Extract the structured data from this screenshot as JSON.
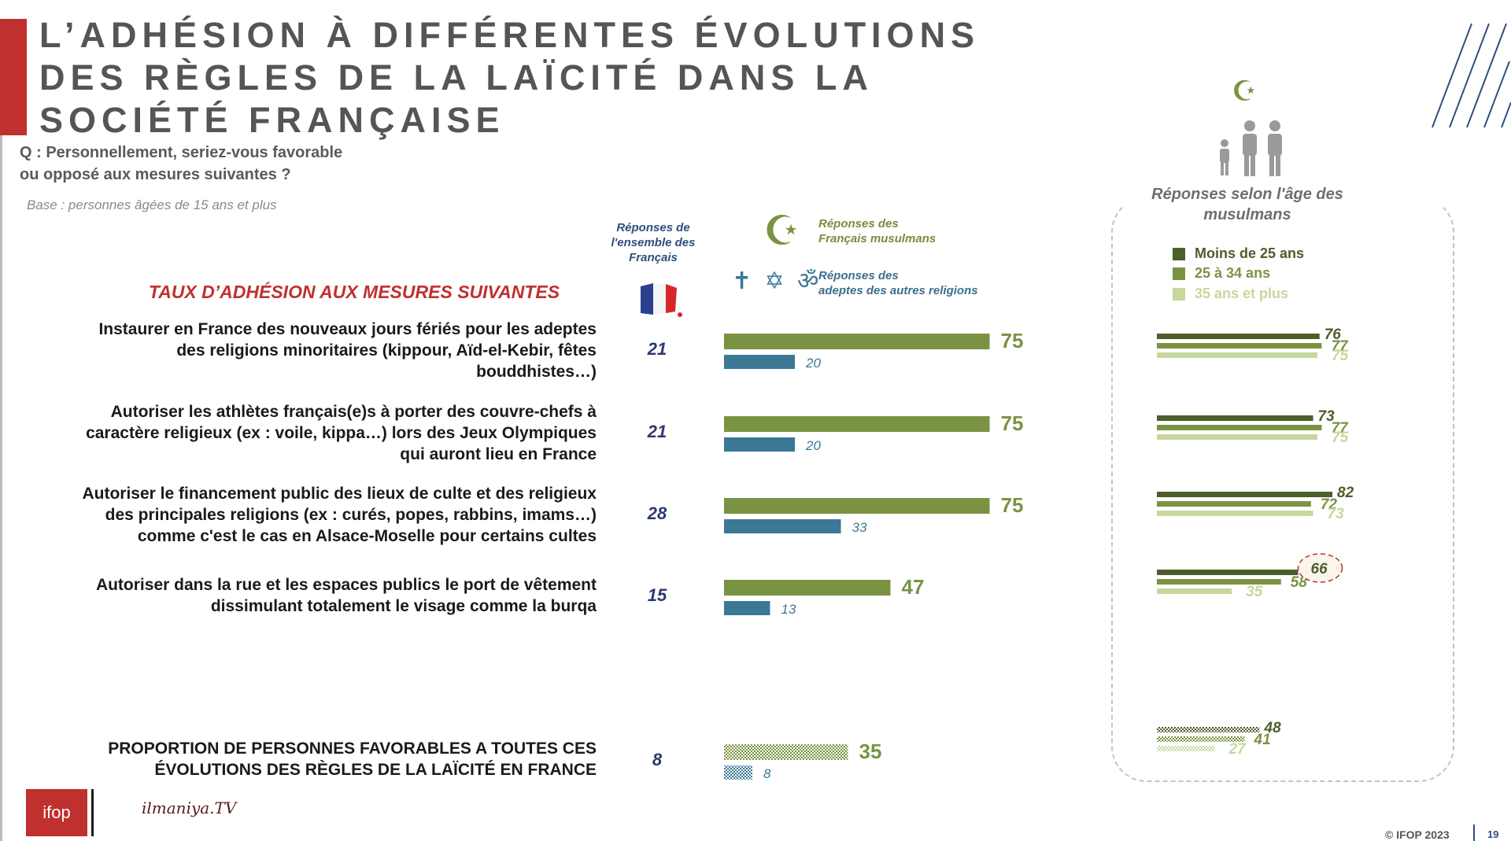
{
  "header": {
    "title": "L’ADHÉSION À DIFFÉRENTES ÉVOLUTIONS DES RÈGLES DE LA LAÏCITÉ DANS LA SOCIÉTÉ FRANÇAISE",
    "question_line1": "Q : Personnellement, seriez-vous favorable",
    "question_line2": "ou opposé aux mesures suivantes ?",
    "base": "Base : personnes âgées de 15 ans et plus"
  },
  "columns": {
    "rate_title": "TAUX D’ADHÉSION AUX MESURES SUIVANTES",
    "french_header_line1": "Réponses de",
    "french_header_line2": "l'ensemble des",
    "french_header_line3": "Français",
    "muslim_header_line1": "Réponses des",
    "muslim_header_line2": "Français musulmans",
    "other_header_line1": "Réponses des",
    "other_header_line2": "adeptes des autres religions",
    "religion_symbols": "✝ ✡ ॐ",
    "crescent_symbol": "☪"
  },
  "colors": {
    "muslims": "#7a9343",
    "other_religions": "#3a7896",
    "under25": "#4d5e2b",
    "age25_34": "#7a9343",
    "over35": "#c6d89b",
    "title_red": "#c0302e",
    "french_blue": "#2e3a6e"
  },
  "measures": [
    {
      "line1": "Instaurer en France des nouveaux jours fériés pour les adeptes",
      "line2": "des religions minoritaires (kippour, Aïd-el-Kebir, fêtes",
      "line3": "bouddhistes…)"
    },
    {
      "line1": "Autoriser les athlètes français(e)s à porter des couvre-chefs à",
      "line2": "caractère religieux (ex : voile, kippa…) lors des Jeux Olympiques",
      "line3": "qui auront lieu en France"
    },
    {
      "line1": "Autoriser le financement public des lieux de culte et des religieux",
      "line2": "des principales religions (ex : curés, popes, rabbins, imams…)",
      "line3": "comme c'est le cas en Alsace-Moselle pour certains cultes"
    },
    {
      "line1": "Autoriser dans la rue et les espaces publics le port de vêtement",
      "line2": "dissimulant totalement le visage comme la burqa",
      "line3": ""
    }
  ],
  "summary": {
    "line1": "PROPORTION DE PERSONNES FAVORABLES A TOUTES CES",
    "line2": "ÉVOLUTIONS DES RÈGLES DE LA LAÏCITÉ EN FRANCE"
  },
  "age_panel": {
    "title_line1": "Réponses selon l'âge des",
    "title_line2": "musulmans",
    "legend": [
      "Moins de 25 ans",
      "25 à 34 ans",
      "35 ans et plus"
    ]
  },
  "chart_data": [
    {
      "type": "bar",
      "title": "TAUX D’ADHÉSION AUX MESURES SUIVANTES",
      "categories": [
        "jours fériés",
        "couvre-chefs JO",
        "financement public",
        "burqa",
        "toutes ces évolutions"
      ],
      "series": [
        {
          "name": "Réponses de l'ensemble des Français",
          "values": [
            21,
            21,
            28,
            15,
            8
          ]
        },
        {
          "name": "Réponses des Français musulmans",
          "values": [
            75,
            75,
            75,
            47,
            35
          ]
        },
        {
          "name": "Réponses des adeptes des autres religions",
          "values": [
            20,
            20,
            33,
            13,
            8
          ]
        }
      ],
      "ylim": [
        0,
        100
      ]
    },
    {
      "type": "bar",
      "title": "Réponses selon l'âge des musulmans",
      "categories": [
        "jours fériés",
        "couvre-chefs JO",
        "financement public",
        "burqa",
        "toutes ces évolutions"
      ],
      "series": [
        {
          "name": "Moins de 25 ans",
          "values": [
            76,
            73,
            82,
            66,
            48
          ]
        },
        {
          "name": "25 à 34 ans",
          "values": [
            77,
            77,
            72,
            58,
            41
          ]
        },
        {
          "name": "35 ans et plus",
          "values": [
            75,
            75,
            73,
            35,
            27
          ]
        }
      ],
      "ylim": [
        0,
        100
      ]
    }
  ],
  "footer": {
    "copyright": "© IFOP 2023",
    "page": "19",
    "ifop_logo": "ifop",
    "partner_logo": "ilmaniya.TV"
  }
}
